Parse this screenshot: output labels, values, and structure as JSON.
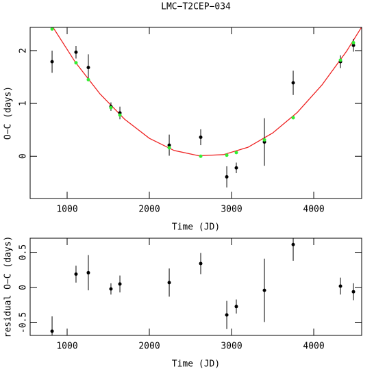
{
  "chart_data": [
    {
      "type": "scatter",
      "title": "LMC−T2CEP−034",
      "xlabel": "Time (JD)",
      "ylabel": "O−C (days)",
      "x": [
        817,
        1108,
        1258,
        1533,
        1642,
        2242,
        2625,
        2942,
        3058,
        3400,
        3750,
        4325,
        4483
      ],
      "xlim": [
        550,
        4583
      ],
      "ylim": [
        -0.8,
        2.44
      ],
      "xticks": [
        1000,
        2000,
        3000,
        4000
      ],
      "yticks": [
        0,
        1,
        2
      ],
      "series": [
        {
          "color": "#000000",
          "values": [
            1.79,
            1.97,
            1.68,
            0.94,
            0.82,
            0.21,
            0.36,
            -0.39,
            -0.22,
            0.27,
            1.39,
            1.79,
            2.1
          ],
          "errors": [
            0.21,
            0.12,
            0.25,
            0.08,
            0.12,
            0.2,
            0.15,
            0.2,
            0.1,
            0.45,
            0.23,
            0.12,
            0.12
          ]
        },
        {
          "color": "#33ee33",
          "values": [
            2.41,
            1.77,
            1.45,
            0.92,
            0.78,
            0.16,
            0,
            0.02,
            0.07,
            0.31,
            0.73,
            1.82,
            2.15
          ]
        }
      ],
      "curve": {
        "color": "#ee2222",
        "x": [
          800,
          1100,
          1400,
          1700,
          2000,
          2300,
          2600,
          2900,
          3200,
          3500,
          3800,
          4100,
          4400,
          4580
        ],
        "values": [
          2.51,
          1.78,
          1.18,
          0.7,
          0.34,
          0.11,
          0.01,
          0.03,
          0.17,
          0.44,
          0.83,
          1.35,
          1.99,
          2.44
        ]
      }
    },
    {
      "type": "scatter",
      "xlabel": "Time (JD)",
      "ylabel": "residual O−C (days)",
      "x": [
        817,
        1108,
        1258,
        1533,
        1642,
        2242,
        2625,
        2942,
        3058,
        3400,
        3750,
        4325,
        4483
      ],
      "xlim": [
        550,
        4583
      ],
      "ylim": [
        -0.68,
        0.7
      ],
      "xticks": [
        1000,
        2000,
        3000,
        4000
      ],
      "yticks": [
        -0.5,
        0,
        0.5
      ],
      "series": [
        {
          "color": "#000000",
          "values": [
            -0.62,
            0.19,
            0.21,
            -0.02,
            0.05,
            0.07,
            0.34,
            -0.39,
            -0.27,
            -0.04,
            0.61,
            0.02,
            -0.06
          ],
          "errors": [
            0.21,
            0.12,
            0.25,
            0.08,
            0.12,
            0.2,
            0.15,
            0.2,
            0.1,
            0.45,
            0.23,
            0.12,
            0.12
          ]
        }
      ]
    }
  ]
}
